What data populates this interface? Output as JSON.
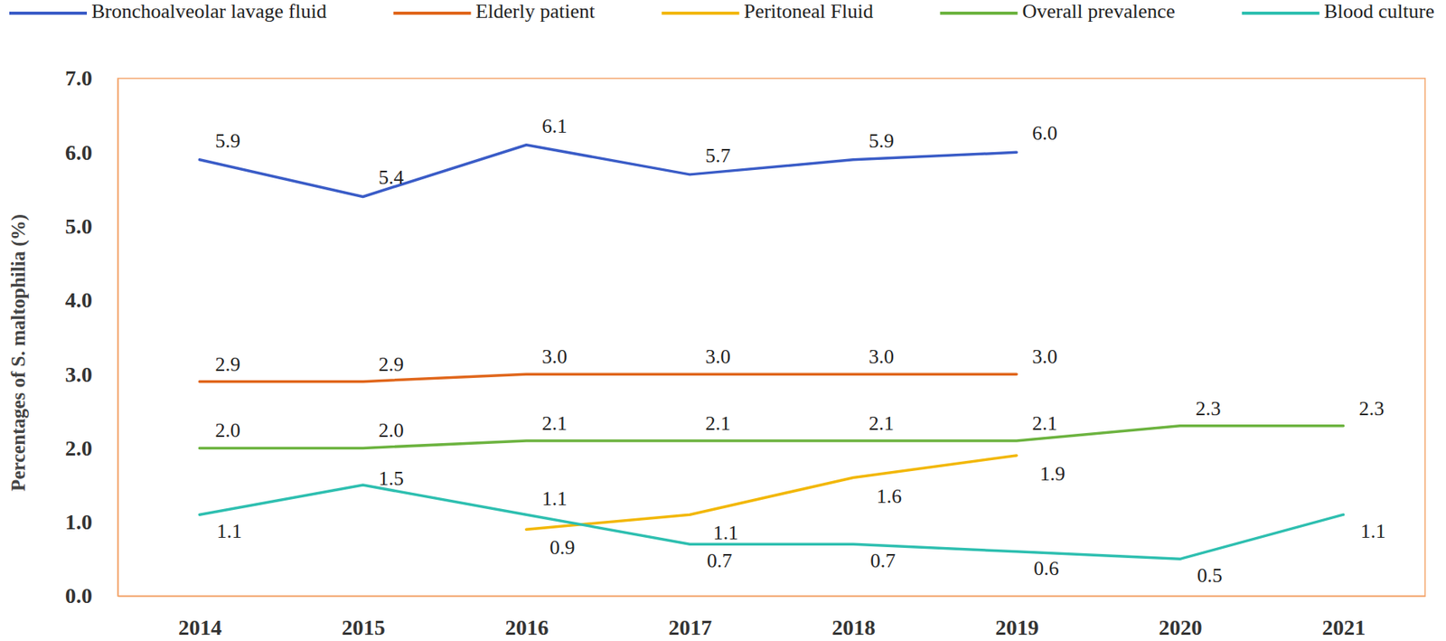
{
  "chart_data": {
    "type": "line",
    "categories": [
      "2014",
      "2015",
      "2016",
      "2017",
      "2018",
      "2019",
      "2020",
      "2021"
    ],
    "y_label": "Percentages of S. maltophilia (%)",
    "ylim": [
      0,
      7
    ],
    "yticks": [
      {
        "value": 0,
        "label": "0.0"
      },
      {
        "value": 1,
        "label": "1.0"
      },
      {
        "value": 2,
        "label": "2.0"
      },
      {
        "value": 3,
        "label": "3.0"
      },
      {
        "value": 4,
        "label": "4.0"
      },
      {
        "value": 5,
        "label": "5.0"
      },
      {
        "value": 6,
        "label": "6.0"
      },
      {
        "value": 7,
        "label": "7.0"
      }
    ],
    "grid": false,
    "legend": "top",
    "data_labels": true,
    "series": [
      {
        "name": "Bronchoalveolar lavage fluid",
        "color": "#3a5cc7",
        "values": [
          5.9,
          5.4,
          6.1,
          5.7,
          5.9,
          6.0,
          null,
          null
        ],
        "value_labels": [
          "5.9",
          "5.4",
          "6.1",
          "5.7",
          "5.9",
          "6.0",
          null,
          null
        ]
      },
      {
        "name": "Elderly patient",
        "color": "#e0661b",
        "values": [
          2.9,
          2.9,
          3.0,
          3.0,
          3.0,
          3.0,
          null,
          null
        ],
        "value_labels": [
          "2.9",
          "2.9",
          "3.0",
          "3.0",
          "3.0",
          "3.0",
          null,
          null
        ]
      },
      {
        "name": "Peritoneal Fluid",
        "color": "#f2b705",
        "values": [
          null,
          null,
          0.9,
          1.1,
          1.6,
          1.9,
          null,
          null
        ],
        "value_labels": [
          null,
          null,
          "0.9",
          "1.1",
          "1.6",
          "1.9",
          null,
          null
        ]
      },
      {
        "name": "Overall prevalence",
        "color": "#6cb33f",
        "values": [
          2.0,
          2.0,
          2.1,
          2.1,
          2.1,
          2.1,
          2.3,
          2.3
        ],
        "value_labels": [
          "2.0",
          "2.0",
          "2.1",
          "2.1",
          "2.1",
          "2.1",
          "2.3",
          "2.3"
        ]
      },
      {
        "name": "Blood culture",
        "color": "#2ebfb0",
        "values": [
          1.1,
          1.5,
          1.1,
          0.7,
          0.7,
          0.6,
          0.5,
          1.1
        ],
        "value_labels": [
          "1.1",
          "1.5",
          "1.1",
          "0.7",
          "0.7",
          "0.6",
          "0.5",
          "1.1"
        ]
      }
    ]
  }
}
